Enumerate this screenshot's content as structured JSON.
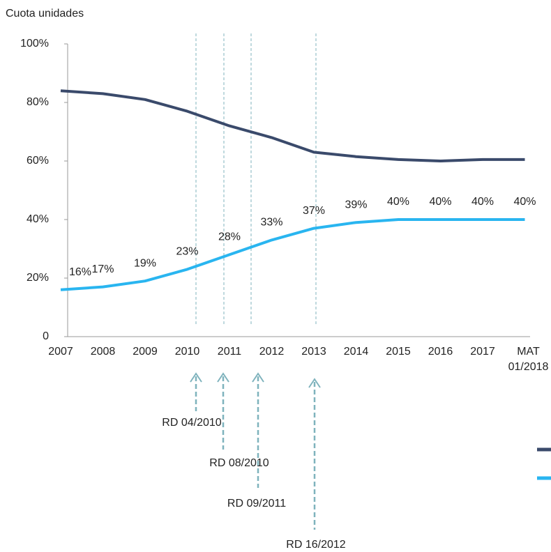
{
  "chart_data": {
    "type": "line",
    "y_label": "Cuota unidades",
    "categories": [
      "2007",
      "2008",
      "2009",
      "2010",
      "2011",
      "2012",
      "2013",
      "2014",
      "2015",
      "2016",
      "2017",
      "MAT 01/2018"
    ],
    "series": [
      {
        "color": "#3a4a6b",
        "values": [
          84,
          83,
          81,
          77,
          72,
          68,
          63,
          61.5,
          60.5,
          60,
          60.5,
          60.5
        ]
      },
      {
        "color": "#29b5f0",
        "values": [
          16,
          17,
          19,
          23,
          28,
          33,
          37,
          39,
          40,
          40,
          40,
          40
        ],
        "value_labels": [
          "16%",
          "17%",
          "19%",
          "23%",
          "28%",
          "33%",
          "37%",
          "39%",
          "40%",
          "40%",
          "40%",
          "40%"
        ]
      }
    ],
    "ylim": [
      0,
      100
    ],
    "yticks": [
      0,
      {
        "value": 20,
        "label": "20%"
      },
      {
        "value": 40,
        "label": "40%"
      },
      {
        "value": 60,
        "label": "60%"
      },
      {
        "value": 80,
        "label": "80%"
      },
      {
        "value": 100,
        "label": "100%"
      }
    ],
    "annotations": [
      "RD 04/2010",
      "RD 08/2010",
      "RD 09/2011",
      "RD 16/2012"
    ]
  }
}
